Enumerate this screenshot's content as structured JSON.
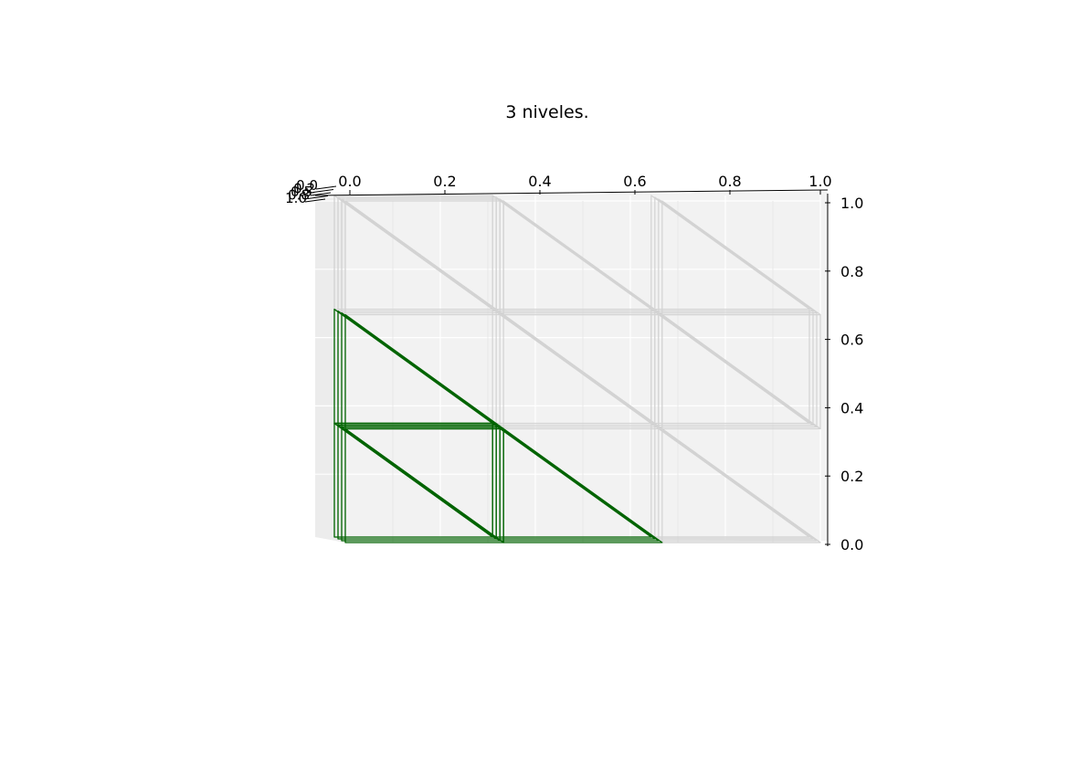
{
  "chart_data": {
    "type": "wireframe-3d",
    "title": "3 niveles.",
    "x_axis": {
      "ticks": [
        0.0,
        0.2,
        0.4,
        0.6,
        0.8,
        1.0
      ],
      "tick_labels": [
        "0.0",
        "0.2",
        "0.4",
        "0.6",
        "0.8",
        "1.0"
      ],
      "range": [
        0.0,
        1.0
      ]
    },
    "y_axis": {
      "ticks": [
        0.0,
        0.2,
        0.4,
        0.6,
        0.8,
        1.0
      ],
      "tick_labels": [
        "0.0",
        "0.2",
        "0.4",
        "0.6",
        "0.8",
        "1.0"
      ],
      "range": [
        0.0,
        1.0
      ]
    },
    "z_axis": {
      "tick_labels": [
        "0.0",
        "0.2",
        "0.5",
        "0.8",
        "1.0"
      ],
      "range": [
        0.0,
        1.0
      ]
    },
    "grid": true,
    "levels": 3,
    "colors": {
      "highlight_mesh": "#006400",
      "background_mesh": "#d3d3d3",
      "pane": "#f2f2f2"
    },
    "highlight_triangles": [
      [
        [
          0.0,
          0.0
        ],
        [
          0.333,
          0.0
        ],
        [
          0.0,
          0.333
        ]
      ],
      [
        [
          0.333,
          0.0
        ],
        [
          0.333,
          0.333
        ],
        [
          0.0,
          0.333
        ]
      ],
      [
        [
          0.333,
          0.0
        ],
        [
          0.667,
          0.0
        ],
        [
          0.333,
          0.333
        ]
      ],
      [
        [
          0.0,
          0.333
        ],
        [
          0.333,
          0.333
        ],
        [
          0.0,
          0.667
        ]
      ]
    ],
    "background_triangles": [
      [
        [
          0.0,
          0.0
        ],
        [
          1.0,
          0.0
        ],
        [
          0.0,
          1.0
        ]
      ],
      [
        [
          0.333,
          0.333
        ],
        [
          0.667,
          0.333
        ],
        [
          0.333,
          0.667
        ]
      ],
      [
        [
          0.667,
          0.0
        ],
        [
          1.0,
          0.0
        ],
        [
          0.667,
          0.333
        ]
      ],
      [
        [
          0.0,
          0.667
        ],
        [
          0.333,
          0.667
        ],
        [
          0.0,
          1.0
        ]
      ],
      [
        [
          0.333,
          0.667
        ],
        [
          0.667,
          0.667
        ],
        [
          0.333,
          1.0
        ]
      ],
      [
        [
          0.667,
          0.333
        ],
        [
          1.0,
          0.333
        ],
        [
          0.667,
          0.667
        ]
      ],
      [
        [
          0.667,
          0.667
        ],
        [
          1.0,
          0.667
        ],
        [
          0.667,
          1.0
        ]
      ],
      [
        [
          0.333,
          0.667
        ],
        [
          0.333,
          1.0
        ],
        [
          0.0,
          1.0
        ]
      ],
      [
        [
          0.667,
          0.333
        ],
        [
          0.667,
          0.667
        ],
        [
          0.333,
          0.667
        ]
      ],
      [
        [
          1.0,
          0.333
        ],
        [
          1.0,
          0.667
        ],
        [
          0.667,
          0.667
        ]
      ]
    ]
  }
}
